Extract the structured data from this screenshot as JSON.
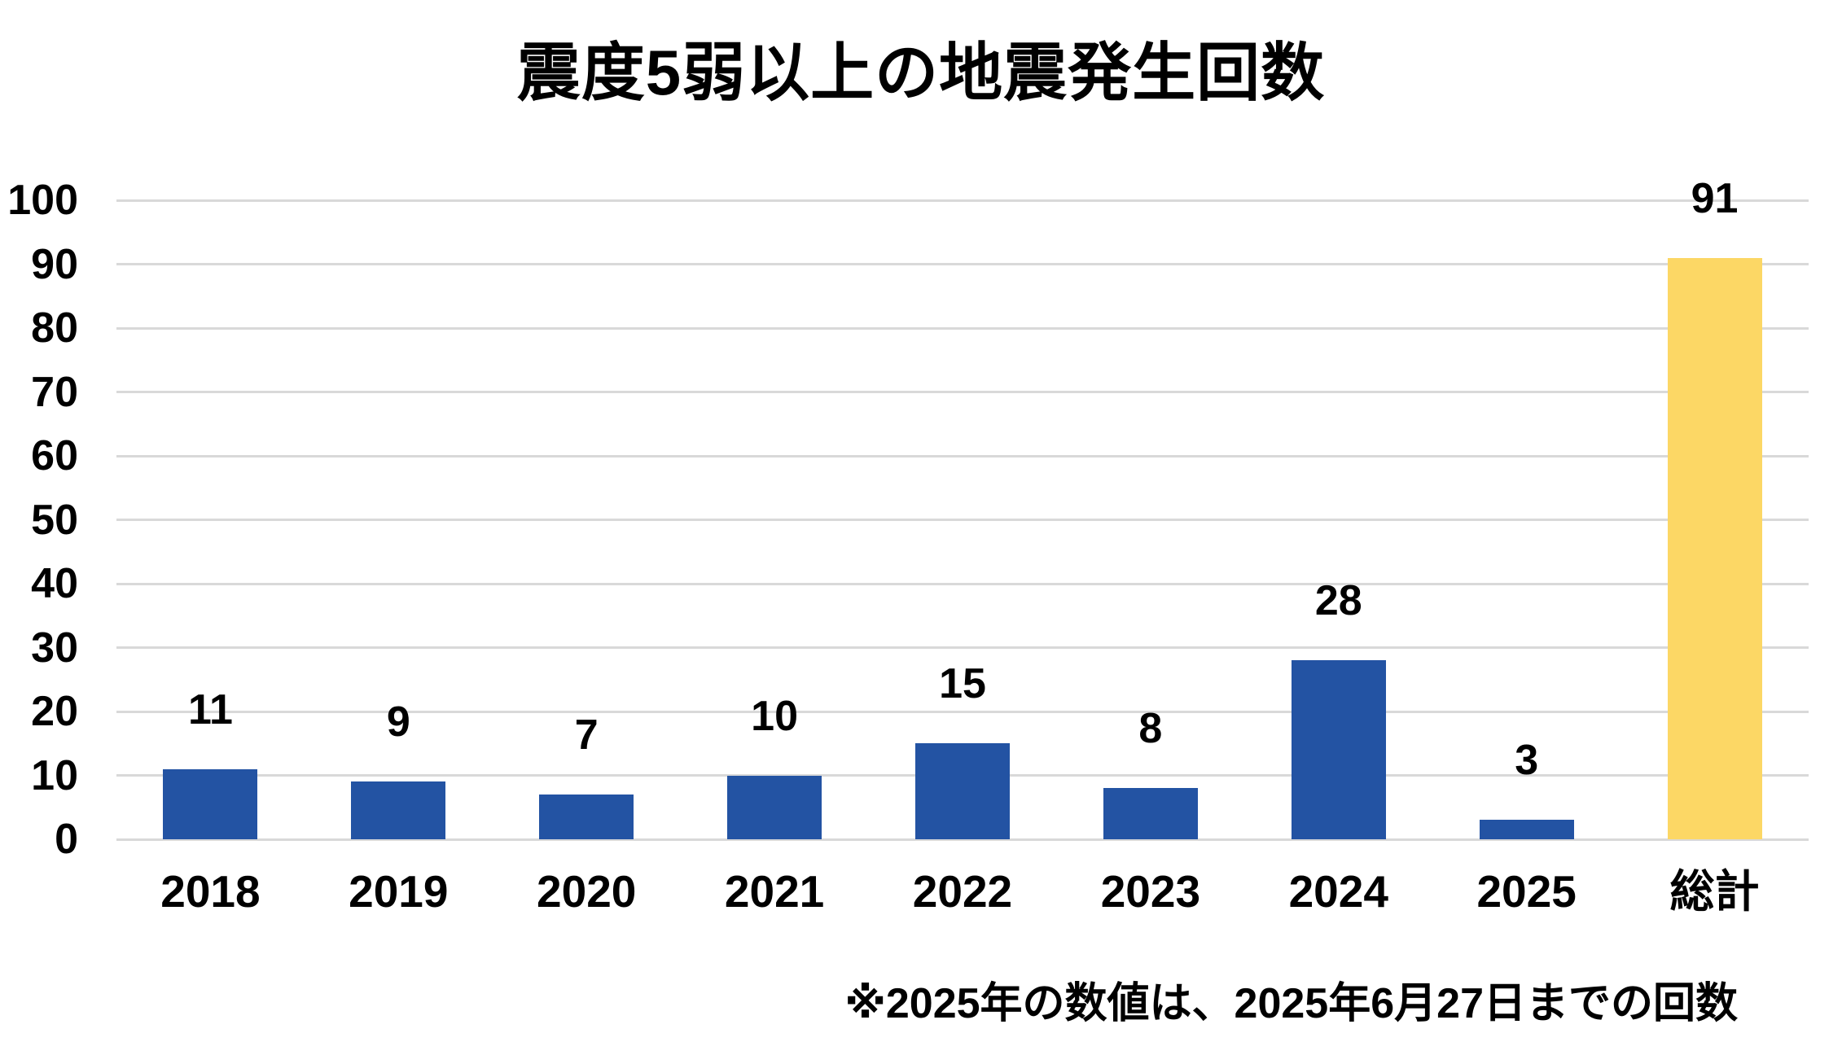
{
  "title": "震度5弱以上の地震発生回数",
  "footnote": "※2025年の数値は、2025年6月27日までの回数",
  "colors": {
    "year_bar": "#2353A3",
    "total_bar": "#FCD765",
    "gridline": "#D9D9D9",
    "text": "#000000",
    "background": "#FFFFFF"
  },
  "chart_data": {
    "type": "bar",
    "title": "震度5弱以上の地震発生回数",
    "categories": [
      "2018",
      "2019",
      "2020",
      "2021",
      "2022",
      "2023",
      "2024",
      "2025",
      "総計"
    ],
    "values": [
      11,
      9,
      7,
      10,
      15,
      8,
      28,
      3,
      91
    ],
    "total_category": "総計",
    "xlabel": "",
    "ylabel": "",
    "ylim": [
      0,
      100
    ],
    "ytick_step": 10,
    "ytick_labels": [
      "0",
      "10",
      "20",
      "30",
      "40",
      "50",
      "60",
      "70",
      "80",
      "90",
      "100"
    ],
    "grid": "horizontal",
    "legend": false,
    "data_labels": true,
    "bar_color_default": "#2353A3",
    "bar_color_total": "#FCD765",
    "footnote": "※2025年の数値は、2025年6月27日までの回数"
  }
}
